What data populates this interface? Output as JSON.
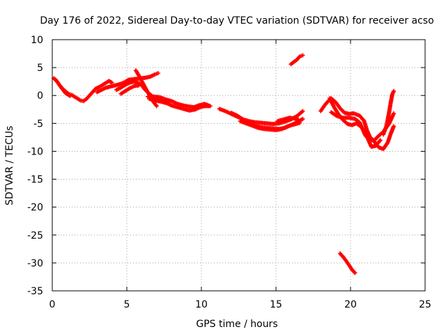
{
  "chart_data": {
    "type": "scatter",
    "title": "Day 176 of 2022, Sidereal Day-to-day VTEC variation (SDTVAR) for receiver acso",
    "xlabel": "GPS time / hours",
    "ylabel": "SDTVAR / TECUs",
    "xlim": [
      0,
      25
    ],
    "ylim": [
      -35,
      10
    ],
    "xticks": [
      "0",
      "5",
      "10",
      "15",
      "20",
      "25"
    ],
    "yticks": [
      "10",
      "5",
      "0",
      "-5",
      "-10",
      "-15",
      "-20",
      "-25",
      "-30",
      "-35"
    ],
    "grid": true,
    "marker": "+",
    "series": [
      {
        "name": "SDTVAR",
        "color": "#ff0000",
        "segments": [
          [
            [
              0.1,
              3.1
            ],
            [
              0.3,
              2.6
            ],
            [
              0.5,
              1.8
            ],
            [
              0.7,
              1.2
            ],
            [
              0.9,
              0.7
            ],
            [
              1.1,
              0.3
            ],
            [
              1.3,
              0.1
            ],
            [
              1.6,
              -0.4
            ],
            [
              1.9,
              -0.9
            ],
            [
              2.1,
              -1.0
            ],
            [
              2.3,
              -0.6
            ],
            [
              2.6,
              0.3
            ],
            [
              2.9,
              1.2
            ],
            [
              3.2,
              1.6
            ],
            [
              3.5,
              2.1
            ],
            [
              3.8,
              2.6
            ],
            [
              4.0,
              2.3
            ]
          ],
          [
            [
              0.2,
              2.9
            ],
            [
              0.4,
              2.2
            ],
            [
              0.6,
              1.4
            ],
            [
              0.9,
              0.4
            ],
            [
              1.2,
              -0.1
            ]
          ],
          [
            [
              3.0,
              0.6
            ],
            [
              3.3,
              1.0
            ],
            [
              3.6,
              1.4
            ],
            [
              3.9,
              1.6
            ],
            [
              4.2,
              1.8
            ],
            [
              4.5,
              2.0
            ],
            [
              4.8,
              2.3
            ],
            [
              5.1,
              2.8
            ],
            [
              5.4,
              2.9
            ],
            [
              5.7,
              3.0
            ],
            [
              6.0,
              3.1
            ],
            [
              6.3,
              3.2
            ],
            [
              6.6,
              3.4
            ],
            [
              6.9,
              3.8
            ],
            [
              7.1,
              4.0
            ]
          ],
          [
            [
              4.3,
              1.0
            ],
            [
              4.6,
              1.4
            ],
            [
              4.9,
              1.9
            ],
            [
              5.2,
              2.3
            ],
            [
              5.5,
              2.5
            ],
            [
              5.8,
              2.2
            ],
            [
              6.0,
              1.8
            ],
            [
              6.2,
              1.1
            ],
            [
              6.4,
              0.6
            ],
            [
              6.6,
              0.1
            ],
            [
              6.9,
              -0.5
            ],
            [
              7.2,
              -0.9
            ],
            [
              7.5,
              -1.2
            ],
            [
              7.8,
              -1.1
            ]
          ],
          [
            [
              5.6,
              4.5
            ],
            [
              5.8,
              3.6
            ],
            [
              6.0,
              2.6
            ],
            [
              6.2,
              1.6
            ],
            [
              6.4,
              0.6
            ],
            [
              6.6,
              -0.3
            ],
            [
              6.8,
              -1.2
            ],
            [
              7.0,
              -1.9
            ]
          ],
          [
            [
              4.6,
              0.3
            ],
            [
              4.9,
              0.8
            ],
            [
              5.2,
              1.3
            ],
            [
              5.5,
              1.7
            ],
            [
              5.8,
              1.8
            ]
          ],
          [
            [
              6.5,
              -0.6
            ],
            [
              6.9,
              -0.9
            ],
            [
              7.3,
              -1.1
            ],
            [
              7.7,
              -1.4
            ],
            [
              8.0,
              -1.8
            ],
            [
              8.4,
              -2.1
            ],
            [
              8.8,
              -2.4
            ],
            [
              9.2,
              -2.7
            ],
            [
              9.6,
              -2.5
            ],
            [
              9.9,
              -2.1
            ],
            [
              10.2,
              -1.9
            ],
            [
              10.5,
              -1.9
            ]
          ],
          [
            [
              6.4,
              -0.2
            ],
            [
              6.8,
              -0.2
            ],
            [
              7.2,
              -0.3
            ],
            [
              7.6,
              -0.7
            ],
            [
              8.0,
              -1.0
            ],
            [
              8.4,
              -1.5
            ],
            [
              8.8,
              -1.8
            ],
            [
              9.2,
              -2.0
            ],
            [
              9.5,
              -2.1
            ],
            [
              9.8,
              -1.8
            ],
            [
              10.2,
              -1.5
            ],
            [
              10.6,
              -1.9
            ]
          ],
          [
            [
              11.2,
              -2.4
            ],
            [
              11.6,
              -2.8
            ],
            [
              12.0,
              -3.3
            ],
            [
              12.4,
              -3.8
            ],
            [
              12.8,
              -4.3
            ],
            [
              13.2,
              -4.6
            ],
            [
              13.6,
              -4.8
            ],
            [
              14.0,
              -4.9
            ],
            [
              14.4,
              -5.0
            ],
            [
              14.8,
              -5.1
            ],
            [
              15.2,
              -5.0
            ],
            [
              15.6,
              -4.7
            ],
            [
              16.0,
              -4.3
            ],
            [
              16.4,
              -3.7
            ],
            [
              16.8,
              -2.8
            ]
          ],
          [
            [
              12.0,
              -3.1
            ],
            [
              12.4,
              -3.6
            ],
            [
              12.8,
              -4.3
            ],
            [
              13.2,
              -5.0
            ],
            [
              13.6,
              -5.4
            ],
            [
              14.0,
              -5.7
            ],
            [
              14.4,
              -5.8
            ],
            [
              14.8,
              -5.9
            ],
            [
              15.2,
              -6.0
            ],
            [
              15.6,
              -5.8
            ],
            [
              16.0,
              -5.3
            ],
            [
              16.4,
              -4.8
            ],
            [
              16.8,
              -4.2
            ]
          ],
          [
            [
              12.6,
              -4.6
            ],
            [
              13.0,
              -5.0
            ],
            [
              13.4,
              -5.4
            ],
            [
              13.8,
              -5.8
            ],
            [
              14.2,
              -6.0
            ],
            [
              14.6,
              -6.1
            ],
            [
              15.0,
              -6.2
            ],
            [
              15.4,
              -6.0
            ],
            [
              15.8,
              -5.5
            ],
            [
              16.2,
              -5.2
            ],
            [
              16.6,
              -4.9
            ]
          ],
          [
            [
              15.1,
              -4.6
            ],
            [
              15.5,
              -4.3
            ],
            [
              15.9,
              -4.0
            ],
            [
              16.2,
              -4.1
            ],
            [
              16.5,
              -4.3
            ]
          ],
          [
            [
              16.0,
              5.6
            ],
            [
              16.2,
              6.0
            ],
            [
              16.4,
              6.4
            ],
            [
              16.6,
              7.0
            ],
            [
              16.8,
              7.2
            ]
          ],
          [
            [
              18.0,
              -2.8
            ],
            [
              18.2,
              -2.0
            ],
            [
              18.4,
              -1.3
            ],
            [
              18.7,
              -0.5
            ],
            [
              19.0,
              -1.2
            ],
            [
              19.3,
              -2.3
            ],
            [
              19.6,
              -3.1
            ],
            [
              19.9,
              -3.3
            ],
            [
              20.2,
              -3.2
            ],
            [
              20.6,
              -3.6
            ],
            [
              20.9,
              -4.5
            ],
            [
              21.1,
              -6.2
            ],
            [
              21.3,
              -7.4
            ],
            [
              21.6,
              -8.3
            ],
            [
              21.9,
              -9.3
            ],
            [
              22.2,
              -9.6
            ],
            [
              22.5,
              -8.4
            ],
            [
              22.7,
              -6.8
            ],
            [
              22.9,
              -5.5
            ]
          ],
          [
            [
              18.6,
              -0.5
            ],
            [
              18.9,
              -2.1
            ],
            [
              19.2,
              -3.4
            ],
            [
              19.5,
              -4.4
            ],
            [
              19.8,
              -5.1
            ],
            [
              20.1,
              -5.3
            ],
            [
              20.4,
              -5.0
            ],
            [
              20.7,
              -5.6
            ],
            [
              21.0,
              -6.6
            ],
            [
              21.2,
              -8.0
            ],
            [
              21.4,
              -9.2
            ],
            [
              21.7,
              -9.0
            ],
            [
              22.0,
              -8.0
            ]
          ],
          [
            [
              18.7,
              -3.0
            ],
            [
              19.1,
              -3.7
            ],
            [
              19.5,
              -4.0
            ],
            [
              19.9,
              -4.0
            ],
            [
              20.3,
              -4.2
            ],
            [
              20.6,
              -4.8
            ],
            [
              20.8,
              -6.0
            ],
            [
              21.0,
              -7.2
            ],
            [
              21.3,
              -8.0
            ],
            [
              21.6,
              -8.0
            ],
            [
              21.9,
              -7.2
            ],
            [
              22.2,
              -6.5
            ],
            [
              22.6,
              -5.0
            ],
            [
              22.9,
              -3.2
            ]
          ],
          [
            [
              22.2,
              -7.0
            ],
            [
              22.4,
              -5.5
            ],
            [
              22.5,
              -4.2
            ],
            [
              22.6,
              -2.8
            ],
            [
              22.7,
              -1.2
            ],
            [
              22.8,
              0.2
            ],
            [
              22.9,
              0.8
            ]
          ],
          [
            [
              19.3,
              -28.3
            ],
            [
              19.5,
              -28.9
            ],
            [
              19.7,
              -29.6
            ],
            [
              19.9,
              -30.4
            ],
            [
              20.1,
              -31.2
            ],
            [
              20.3,
              -31.8
            ]
          ]
        ]
      }
    ]
  }
}
